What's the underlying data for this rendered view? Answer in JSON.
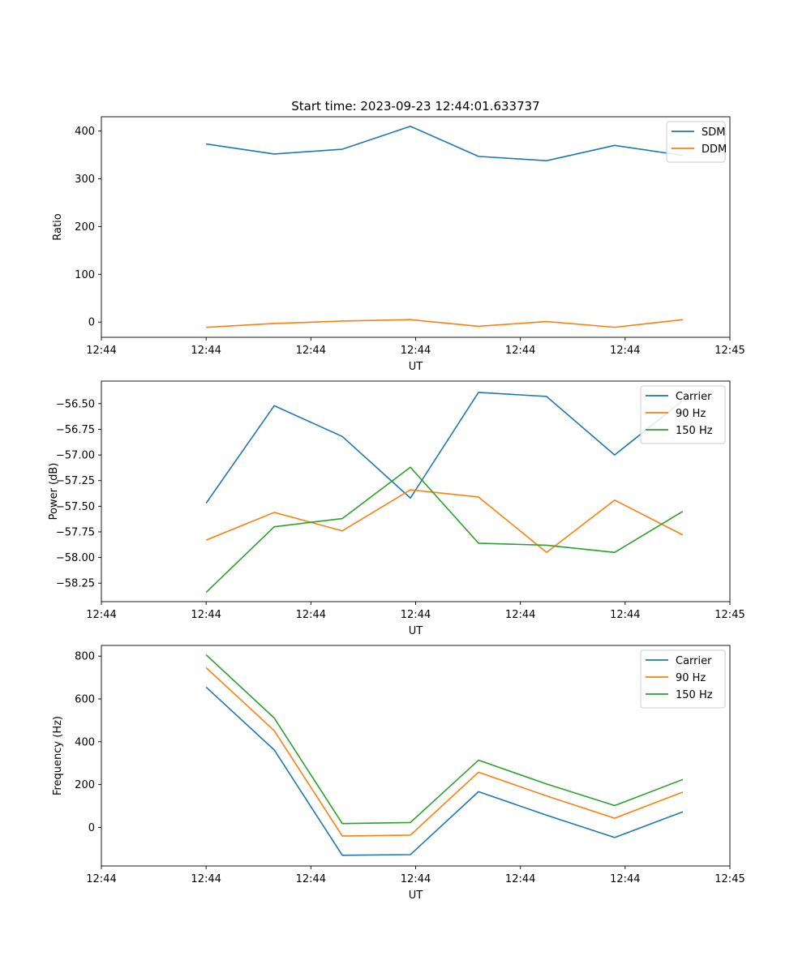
{
  "figure": {
    "title": "Start time: 2023-09-23 12:44:01.633737"
  },
  "chart_data": [
    {
      "type": "line",
      "title": "Start time: 2023-09-23 12:44:01.633737",
      "xlabel": "UT",
      "ylabel": "Ratio",
      "x": [
        0.2,
        0.33,
        0.46,
        0.59,
        0.72,
        0.85,
        0.98,
        1.11
      ],
      "xlim": [
        0,
        1.2
      ],
      "xticks": [
        0,
        0.2,
        0.4,
        0.6,
        0.8,
        1.0,
        1.2
      ],
      "xticklabels": [
        "12:44",
        "12:44",
        "12:44",
        "12:44",
        "12:44",
        "12:44",
        "12:45"
      ],
      "ylim": [
        -32,
        430
      ],
      "yticks": [
        0,
        100,
        200,
        300,
        400
      ],
      "yticklabels": [
        "0",
        "100",
        "200",
        "300",
        "400"
      ],
      "legend_position": "top-right",
      "series": [
        {
          "name": "SDM",
          "color": "#1f77b4",
          "values": [
            373,
            352,
            362,
            410,
            347,
            338,
            370,
            349
          ]
        },
        {
          "name": "DDM",
          "color": "#ff7f0e",
          "values": [
            -11,
            -3,
            2,
            5,
            -9,
            1,
            -11,
            5
          ]
        }
      ]
    },
    {
      "type": "line",
      "title": "",
      "xlabel": "UT",
      "ylabel": "Power (dB)",
      "x": [
        0.2,
        0.33,
        0.46,
        0.59,
        0.72,
        0.85,
        0.98,
        1.11
      ],
      "xlim": [
        0,
        1.2
      ],
      "xticks": [
        0,
        0.2,
        0.4,
        0.6,
        0.8,
        1.0,
        1.2
      ],
      "xticklabels": [
        "12:44",
        "12:44",
        "12:44",
        "12:44",
        "12:44",
        "12:44",
        "12:45"
      ],
      "ylim": [
        -58.43,
        -56.28
      ],
      "yticks": [
        -58.25,
        -58.0,
        -57.75,
        -57.5,
        -57.25,
        -57.0,
        -56.75,
        -56.5
      ],
      "yticklabels": [
        "−58.25",
        "−58.00",
        "−57.75",
        "−57.50",
        "−57.25",
        "−57.00",
        "−56.75",
        "−56.50"
      ],
      "legend_position": "top-right",
      "series": [
        {
          "name": "Carrier",
          "color": "#1f77b4",
          "values": [
            -57.47,
            -56.52,
            -56.82,
            -57.42,
            -56.39,
            -56.43,
            -57.0,
            -56.47
          ]
        },
        {
          "name": "90 Hz",
          "color": "#ff7f0e",
          "values": [
            -57.83,
            -57.56,
            -57.74,
            -57.34,
            -57.41,
            -57.95,
            -57.44,
            -57.78
          ]
        },
        {
          "name": "150 Hz",
          "color": "#2ca02c",
          "values": [
            -58.34,
            -57.7,
            -57.62,
            -57.12,
            -57.86,
            -57.88,
            -57.95,
            -57.55
          ]
        }
      ]
    },
    {
      "type": "line",
      "title": "",
      "xlabel": "UT",
      "ylabel": "Frequency (Hz)",
      "x": [
        0.2,
        0.33,
        0.46,
        0.59,
        0.72,
        0.85,
        0.98,
        1.11
      ],
      "xlim": [
        0,
        1.2
      ],
      "xticks": [
        0,
        0.2,
        0.4,
        0.6,
        0.8,
        1.0,
        1.2
      ],
      "xticklabels": [
        "12:44",
        "12:44",
        "12:44",
        "12:44",
        "12:44",
        "12:44",
        "12:45"
      ],
      "ylim": [
        -180,
        850
      ],
      "yticks": [
        0,
        200,
        400,
        600,
        800
      ],
      "yticklabels": [
        "0",
        "200",
        "400",
        "600",
        "800"
      ],
      "legend_position": "top-right",
      "series": [
        {
          "name": "Carrier",
          "color": "#1f77b4",
          "values": [
            655,
            362,
            -130,
            -127,
            167,
            57,
            -47,
            73
          ]
        },
        {
          "name": "90 Hz",
          "color": "#ff7f0e",
          "values": [
            746,
            452,
            -40,
            -36,
            258,
            147,
            43,
            165
          ]
        },
        {
          "name": "150 Hz",
          "color": "#2ca02c",
          "values": [
            806,
            511,
            18,
            23,
            314,
            203,
            102,
            224
          ]
        }
      ]
    }
  ]
}
